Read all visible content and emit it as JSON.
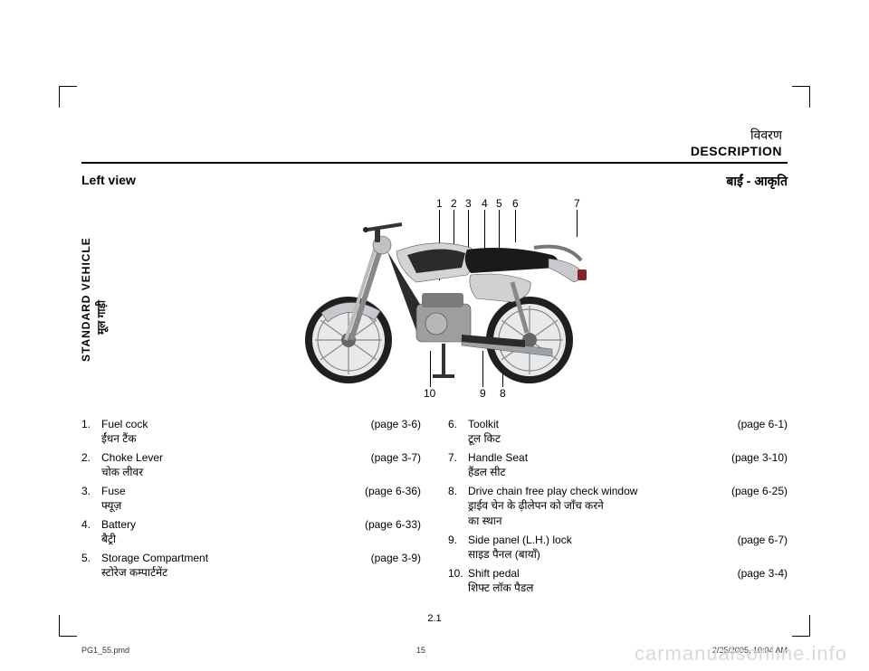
{
  "header": {
    "hindi": "विवरण",
    "eng": "DESCRIPTION"
  },
  "subhead": {
    "left": "Left view",
    "right": "बाईं - आकृति"
  },
  "sidebar": {
    "eng": "STANDARD VEHICLE",
    "hindi": "मूल गाड़ी"
  },
  "callouts_top": [
    "1",
    "2",
    "3",
    "4",
    "5",
    "6",
    "7"
  ],
  "callouts_bottom": [
    "10",
    "9",
    "8"
  ],
  "left_items": [
    {
      "n": "1.",
      "en": "Fuel cock",
      "ref": "(page  3-6)",
      "hi": "ईंधन टैंक"
    },
    {
      "n": "2.",
      "en": "Choke Lever",
      "ref": "(page  3-7)",
      "hi": "चोक लीवर"
    },
    {
      "n": "3.",
      "en": "Fuse",
      "ref": "(page  6-36)",
      "hi": "फ्यूज़"
    },
    {
      "n": "4.",
      "en": "Battery",
      "ref": "(page  6-33)",
      "hi": "बैट्री"
    },
    {
      "n": "5.",
      "en": "Storage Compartment",
      "ref": "(page  3-9)",
      "hi": "स्टोरेज कम्पार्टमेंट"
    }
  ],
  "right_items": [
    {
      "n": "6.",
      "en": "Toolkit",
      "ref": "(page  6-1)",
      "hi": "टूल किट"
    },
    {
      "n": "7.",
      "en": "Handle Seat",
      "ref": "(page  3-10)",
      "hi": "हैंडल सीट"
    },
    {
      "n": "8.",
      "en": "Drive chain free play check window",
      "ref": "(page  6-25)",
      "hi": "ड्राईव चेन के ढ़ीलेपन को जाँच करने",
      "hi2": "का स्थान"
    },
    {
      "n": "9.",
      "en": "Side panel (L.H.) lock",
      "ref": "(page  6-7)",
      "hi": "साइड पैनल (बायाँ)"
    },
    {
      "n": "10.",
      "en": "Shift pedal",
      "ref": "(page  3-4)",
      "hi": "शिफ्ट लॉक पैडल"
    }
  ],
  "pagenum": "2.1",
  "footer": {
    "left": "PG1_55.pmd",
    "mid": "15",
    "right": "2/25/2005, 10:04 AM"
  },
  "watermark": "carmanualsonline.info",
  "colors": {
    "bike_body": "#c7c9cc",
    "bike_dark": "#2b2b2b",
    "bike_seat": "#1a1a1a",
    "tire": "#1f1f1f",
    "rim": "#9aa0a4"
  }
}
